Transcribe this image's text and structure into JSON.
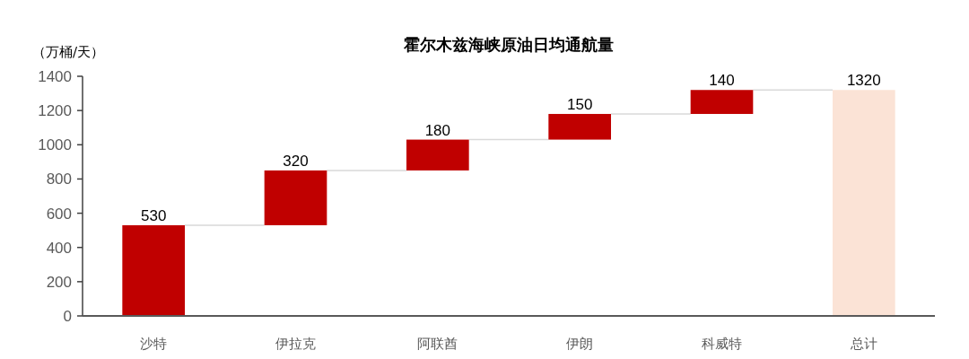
{
  "chart_data": {
    "type": "bar",
    "title": "霍尔木兹海峡原油日均通航量",
    "ylabel": "（万桶/天）",
    "categories": [
      "沙特",
      "伊拉克",
      "阿联酋",
      "伊朗",
      "科威特",
      "总计"
    ],
    "values": [
      530,
      320,
      180,
      150,
      140,
      1320
    ],
    "base": [
      0,
      530,
      850,
      1030,
      1180,
      0
    ],
    "colors": [
      "#c00000",
      "#c00000",
      "#c00000",
      "#c00000",
      "#c00000",
      "#fbe3d6"
    ],
    "ylim": [
      0,
      1400
    ],
    "yticks": [
      0,
      200,
      400,
      600,
      800,
      1000,
      1200,
      1400
    ],
    "data_labels": true
  }
}
